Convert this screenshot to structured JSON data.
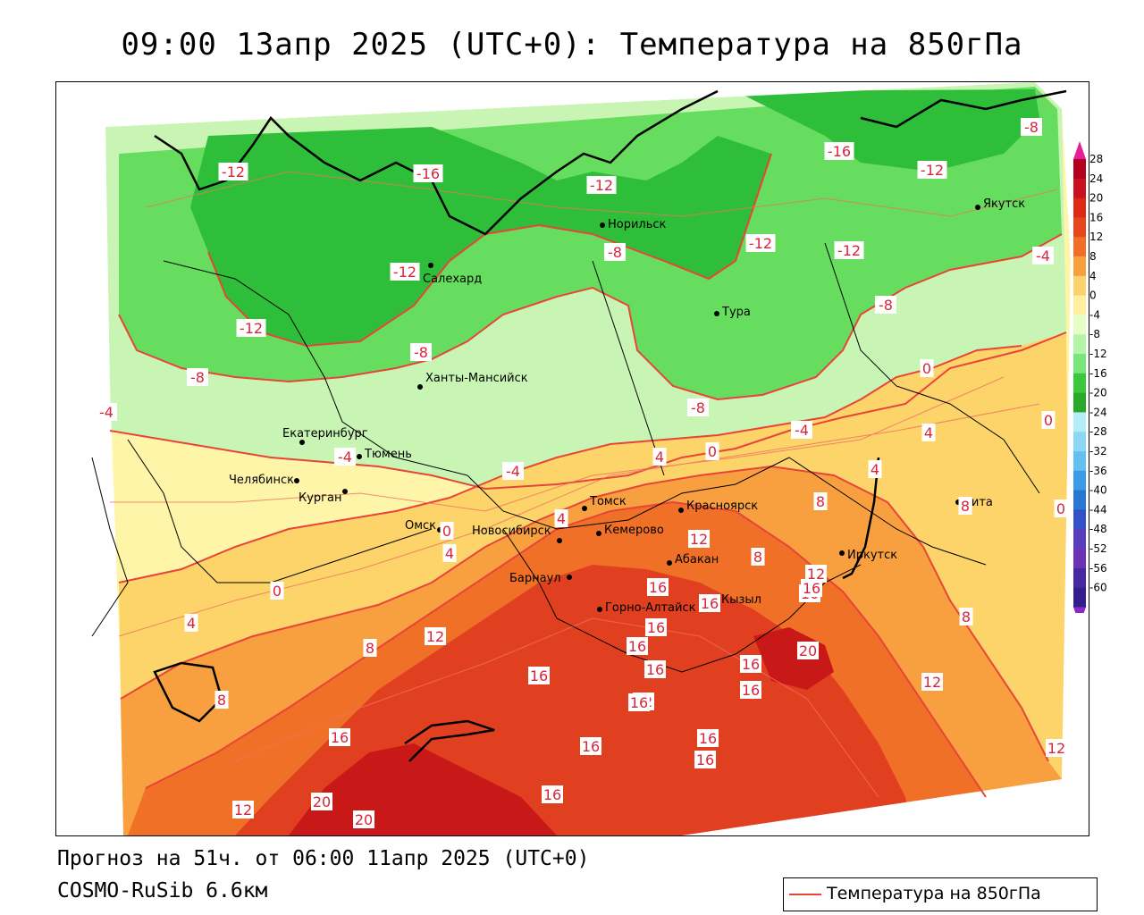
{
  "title": "09:00 13апр 2025 (UTC+0): Температура на 850гПа",
  "footer": {
    "forecast": "Прогноз на 51ч. от 06:00 11апр 2025 (UTC+0)",
    "model": "COSMO-RuSib 6.6км"
  },
  "legend": {
    "label": "Температура на 850гПа",
    "line_color": "#e8443a"
  },
  "colorbar": {
    "ticks": [
      "28",
      "24",
      "20",
      "16",
      "12",
      "8",
      "4",
      "0",
      "-4",
      "-8",
      "-12",
      "-16",
      "-20",
      "-24",
      "-28",
      "-32",
      "-36",
      "-40",
      "-44",
      "-48",
      "-52",
      "-56",
      "-60"
    ],
    "colors": [
      "#b4001e",
      "#c8101e",
      "#dc2814",
      "#e8461e",
      "#f06e28",
      "#f8a03c",
      "#fcd26e",
      "#fff0a0",
      "#e6ffc8",
      "#b4f5aa",
      "#78e678",
      "#3cc83c",
      "#2aa82a",
      "#b4ecf8",
      "#8cd8f4",
      "#64c0f0",
      "#3c9ae6",
      "#2878d2",
      "#3250c8",
      "#5a3cbe",
      "#6e32b4",
      "#4628a0",
      "#321e8c"
    ],
    "top_color": "#e6209a",
    "bottom_color": "#8c28c8"
  },
  "colors": {
    "green_dark": "#2fbe3a",
    "green_mid": "#66dd5e",
    "green_light": "#c8f5b4",
    "yellow_light": "#fff5a8",
    "yellow": "#fcd46a",
    "orange": "#f8a040",
    "orange_dark": "#f07028",
    "red": "#e04020",
    "red_dark": "#c81818",
    "isotherm": "#e8443a"
  },
  "cities": [
    {
      "name": "Норильск"
    },
    {
      "name": "Якутск"
    },
    {
      "name": "Салехард"
    },
    {
      "name": "Тура"
    },
    {
      "name": "Ханты-Мансийск"
    },
    {
      "name": "Екатеринбург"
    },
    {
      "name": "Тюмень"
    },
    {
      "name": "Челябинск"
    },
    {
      "name": "Курган"
    },
    {
      "name": "Омск"
    },
    {
      "name": "Новосибирск"
    },
    {
      "name": "Томск"
    },
    {
      "name": "Красноярск"
    },
    {
      "name": "Кемерово"
    },
    {
      "name": "Абакан"
    },
    {
      "name": "Иркутск"
    },
    {
      "name": "Барнаул"
    },
    {
      "name": "Кызыл"
    },
    {
      "name": "Горно-Алтайск"
    },
    {
      "name": "Чита"
    }
  ],
  "isotherm_labels": [
    "-16",
    "-16",
    "-12",
    "-12",
    "-12",
    "-12",
    "-12",
    "-12",
    "-12",
    "-8",
    "-8",
    "-8",
    "-8",
    "-8",
    "-8",
    "-4",
    "-4",
    "-4",
    "-4",
    "-4",
    "0",
    "0",
    "0",
    "0",
    "0",
    "0",
    "4",
    "4",
    "4",
    "4",
    "4",
    "4",
    "8",
    "8",
    "8",
    "8",
    "8",
    "8",
    "12",
    "12",
    "12",
    "12",
    "12",
    "12",
    "12",
    "16",
    "16",
    "16",
    "16",
    "16",
    "16",
    "16",
    "16",
    "16",
    "16",
    "16",
    "16",
    "16",
    "16",
    "16",
    "16",
    "20",
    "20",
    "20"
  ]
}
